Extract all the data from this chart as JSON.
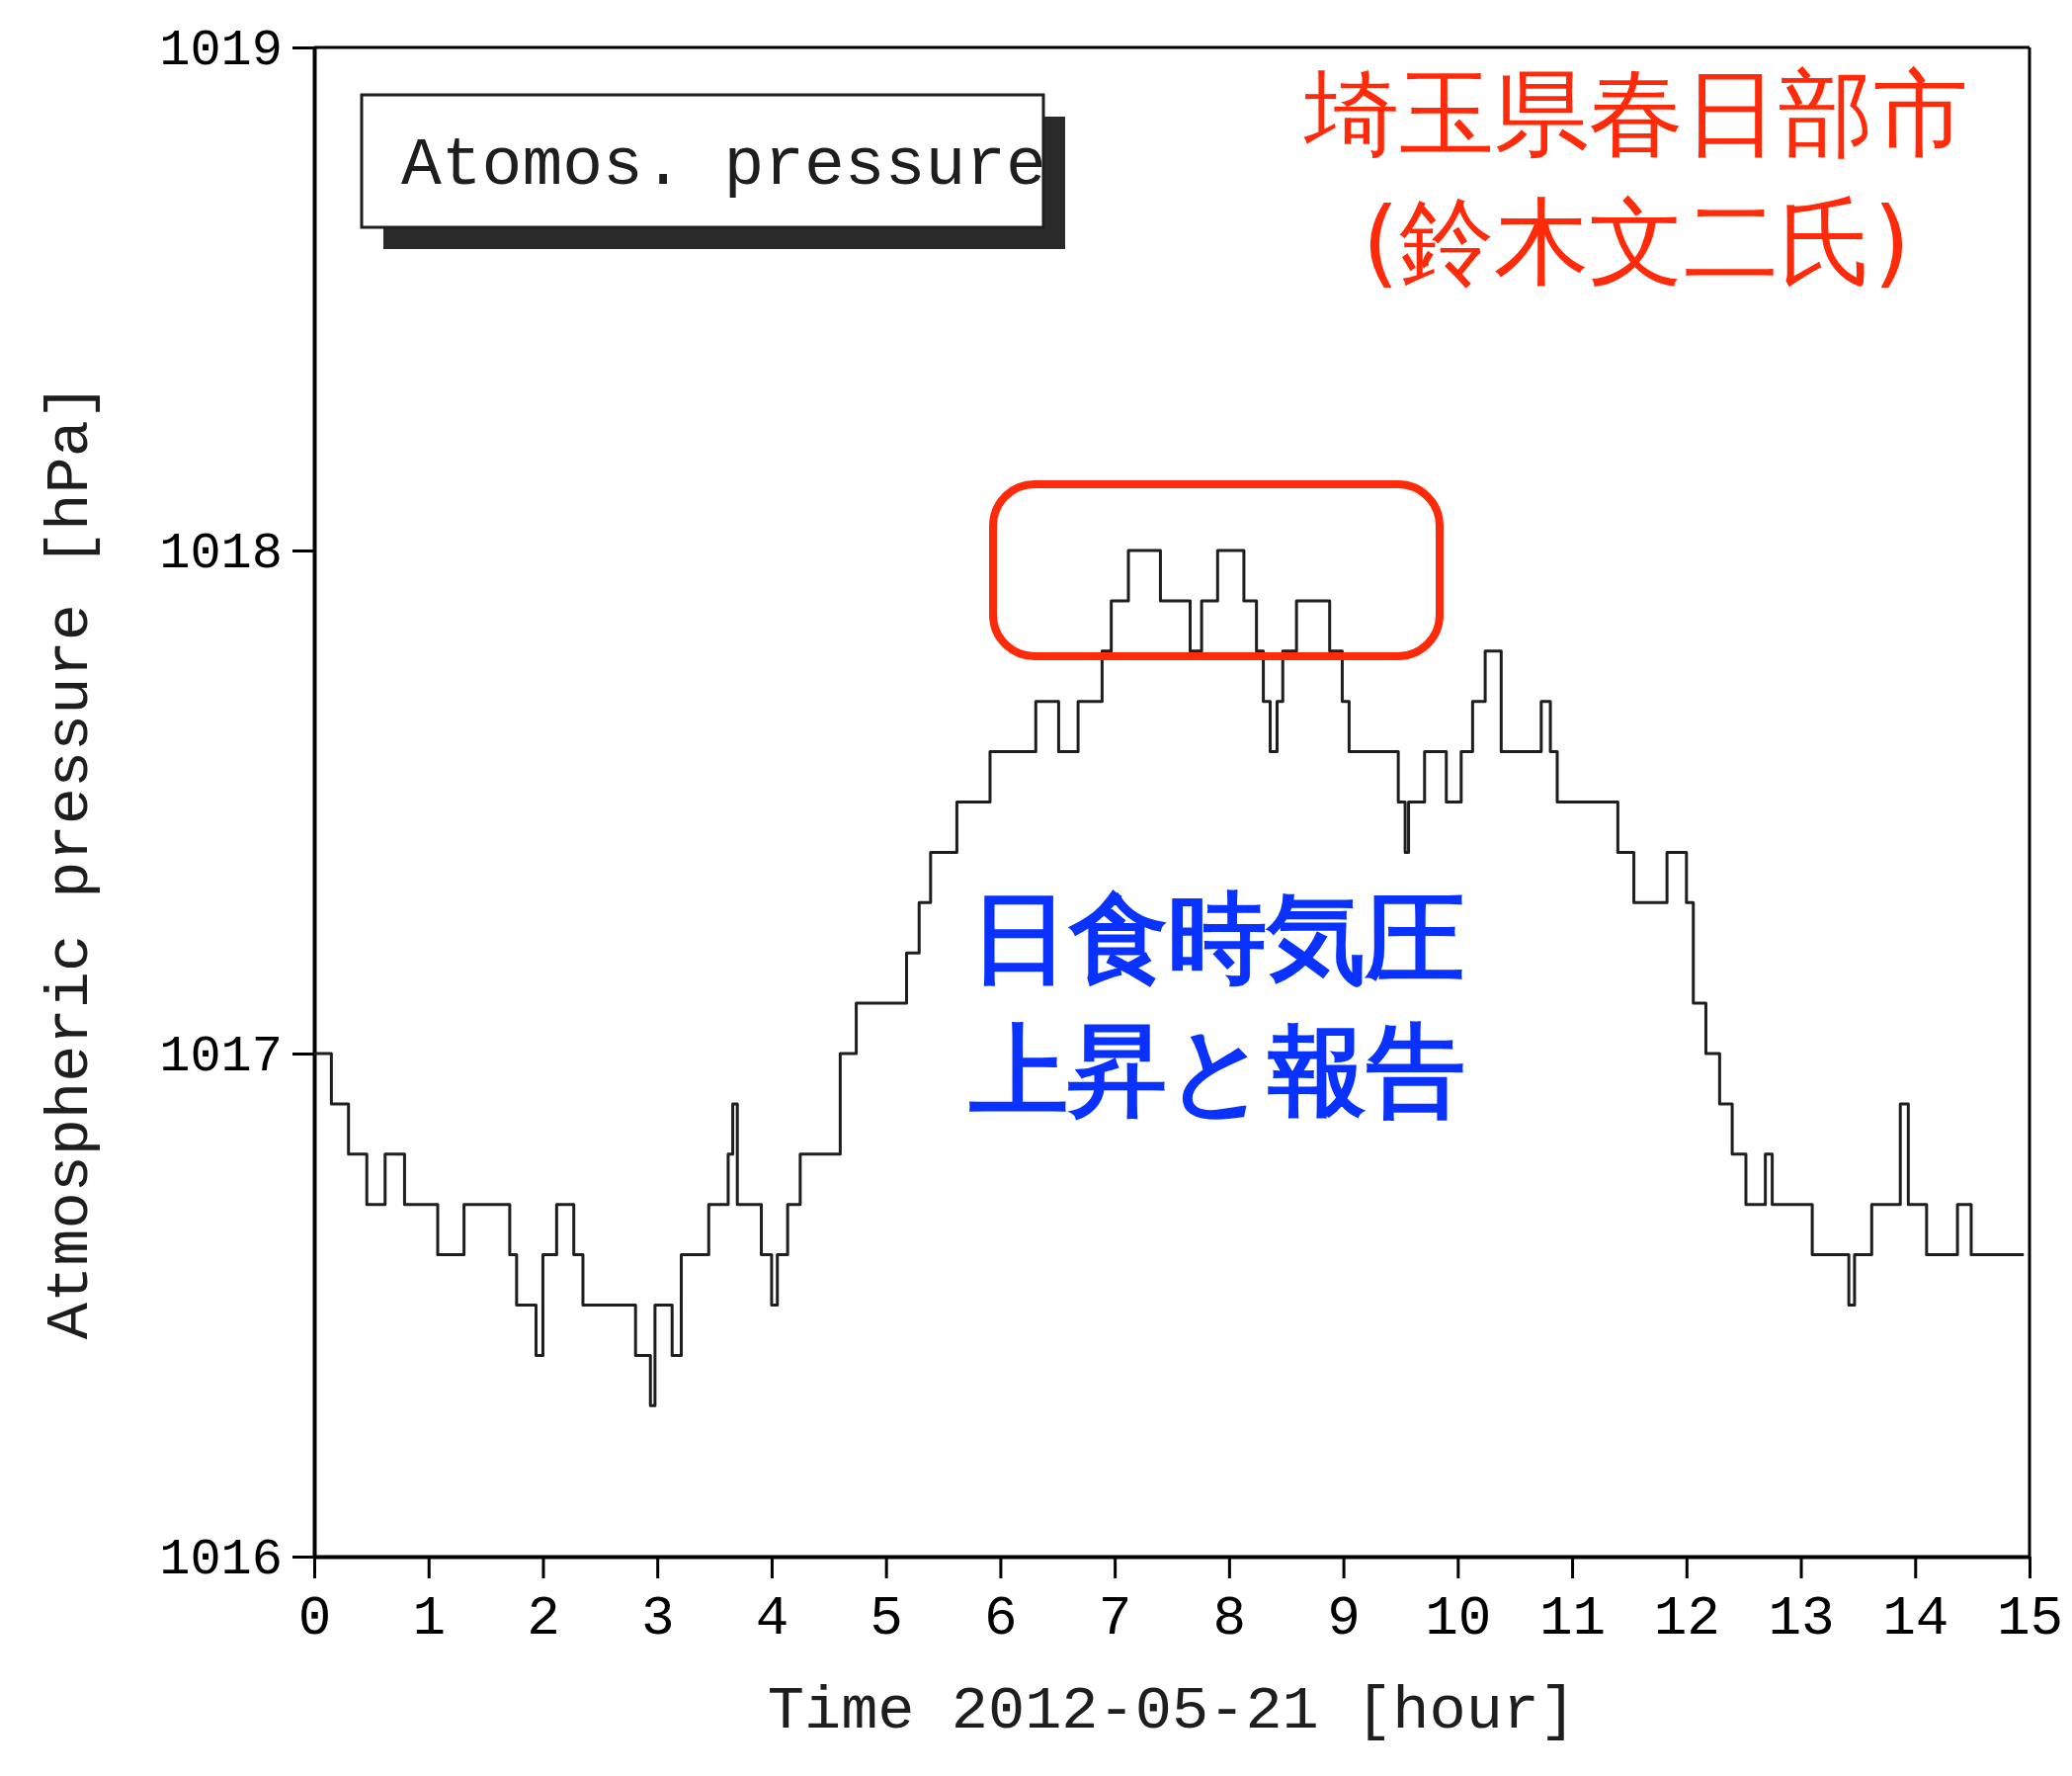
{
  "chart_data": {
    "type": "step",
    "xlabel": "Time 2012-05-21 [hour]",
    "ylabel": "Atmospheric pressure [hPa]",
    "annotations": [
      "埼玉県春日部市",
      "(鈴木文二氏)",
      "日食時気圧上昇と報告"
    ],
    "legend": "top left",
    "xlim": [
      0,
      15
    ],
    "ylim": [
      1016,
      1019
    ],
    "xticks": [
      0,
      1,
      2,
      3,
      4,
      5,
      6,
      7,
      8,
      9,
      10,
      11,
      12,
      13,
      14,
      15
    ],
    "yticks": [
      1016,
      1017,
      1018,
      1019
    ],
    "series": [
      {
        "name": "Atomos. pressure",
        "color": "#1e1e1e",
        "x": [
          0,
          0.15,
          0.3,
          0.46,
          0.62,
          0.79,
          1.08,
          1.31,
          1.71,
          1.77,
          1.94,
          2.0,
          2.12,
          2.27,
          2.35,
          2.81,
          2.94,
          2.98,
          3.13,
          3.21,
          3.45,
          3.62,
          3.66,
          3.7,
          3.91,
          4.0,
          4.05,
          4.14,
          4.25,
          4.6,
          4.74,
          5.18,
          5.29,
          5.39,
          5.62,
          5.91,
          6.31,
          6.51,
          6.68,
          6.89,
          6.97,
          7.12,
          7.4,
          7.66,
          7.76,
          7.9,
          8.13,
          8.24,
          8.3,
          8.36,
          8.42,
          8.47,
          8.59,
          8.88,
          8.99,
          9.05,
          9.48,
          9.54,
          9.57,
          9.71,
          9.9,
          10.03,
          10.13,
          10.24,
          10.38,
          10.73,
          10.81,
          10.87,
          11.4,
          11.54,
          11.83,
          12.0,
          12.06,
          12.17,
          12.29,
          12.4,
          12.52,
          12.69,
          12.75,
          13.1,
          13.42,
          13.47,
          13.62,
          13.87,
          13.94,
          14.1,
          14.37,
          14.49,
          14.95
        ],
        "values": [
          1017.0,
          1016.9,
          1016.8,
          1016.7,
          1016.8,
          1016.7,
          1016.6,
          1016.7,
          1016.6,
          1016.5,
          1016.4,
          1016.6,
          1016.7,
          1016.6,
          1016.5,
          1016.4,
          1016.3,
          1016.5,
          1016.4,
          1016.6,
          1016.7,
          1016.8,
          1016.9,
          1016.7,
          1016.6,
          1016.5,
          1016.6,
          1016.7,
          1016.8,
          1017.0,
          1017.1,
          1017.2,
          1017.3,
          1017.4,
          1017.5,
          1017.6,
          1017.7,
          1017.6,
          1017.7,
          1017.8,
          1017.9,
          1018.0,
          1017.9,
          1017.8,
          1017.9,
          1018.0,
          1017.9,
          1017.8,
          1017.7,
          1017.6,
          1017.7,
          1017.8,
          1017.9,
          1017.8,
          1017.7,
          1017.6,
          1017.5,
          1017.4,
          1017.5,
          1017.6,
          1017.5,
          1017.6,
          1017.7,
          1017.8,
          1017.6,
          1017.7,
          1017.6,
          1017.5,
          1017.4,
          1017.3,
          1017.4,
          1017.3,
          1017.1,
          1017.0,
          1016.9,
          1016.8,
          1016.7,
          1016.8,
          1016.7,
          1016.6,
          1016.5,
          1016.6,
          1016.7,
          1016.9,
          1016.7,
          1016.6,
          1016.7,
          1016.6,
          1016.6
        ]
      }
    ]
  }
}
